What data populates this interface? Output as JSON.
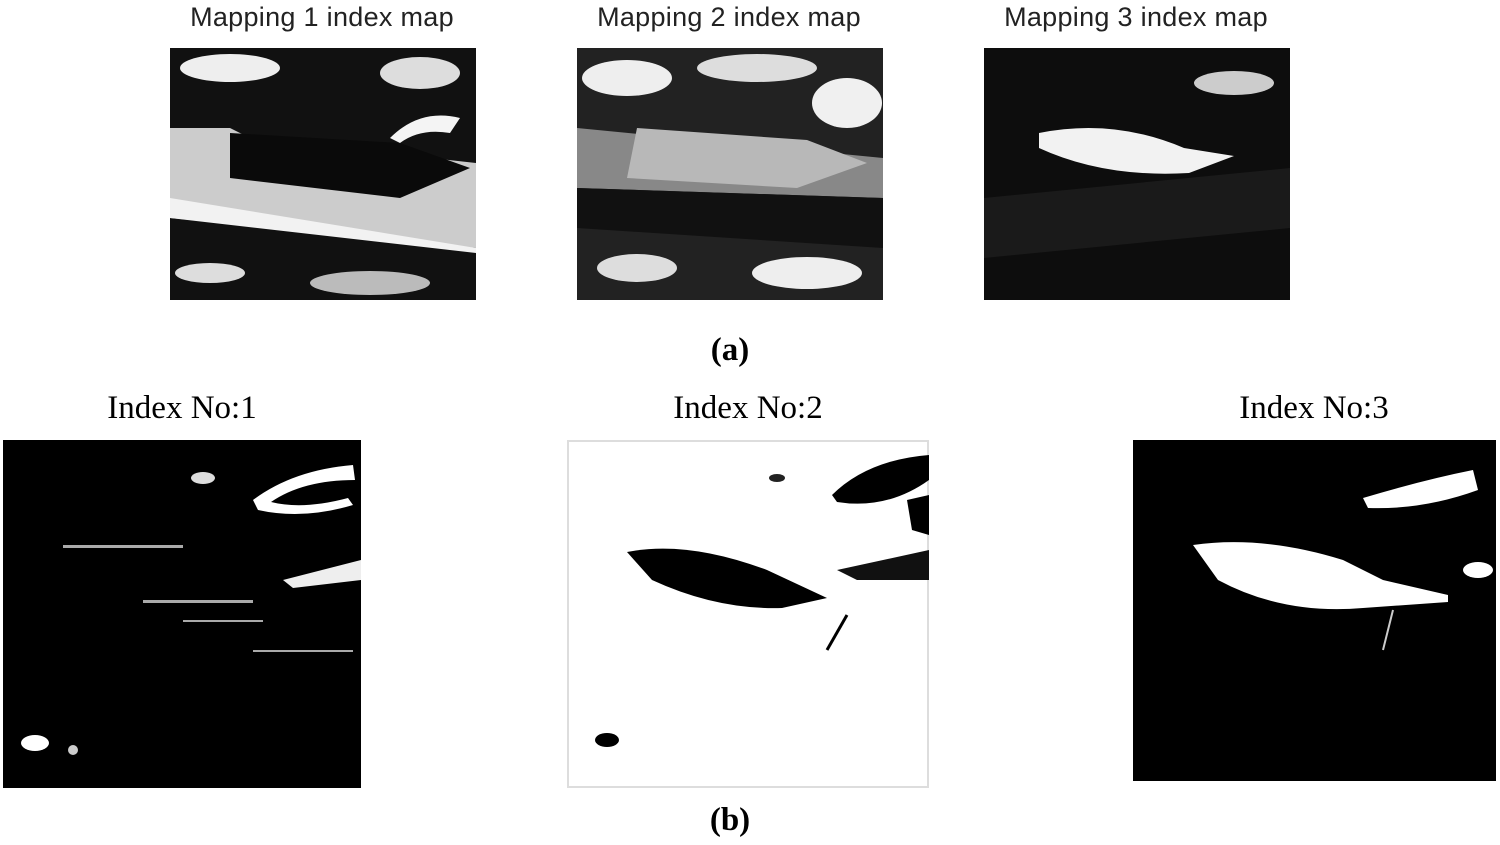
{
  "panel_a": {
    "caption": "(a)",
    "maps": [
      {
        "title": "Mapping 1 index map"
      },
      {
        "title": "Mapping 2 index map"
      },
      {
        "title": "Mapping 3 index map"
      }
    ]
  },
  "panel_b": {
    "caption": "(b)",
    "maps": [
      {
        "title": "Index No:1"
      },
      {
        "title": "Index No:2"
      },
      {
        "title": "Index No:3"
      }
    ]
  }
}
